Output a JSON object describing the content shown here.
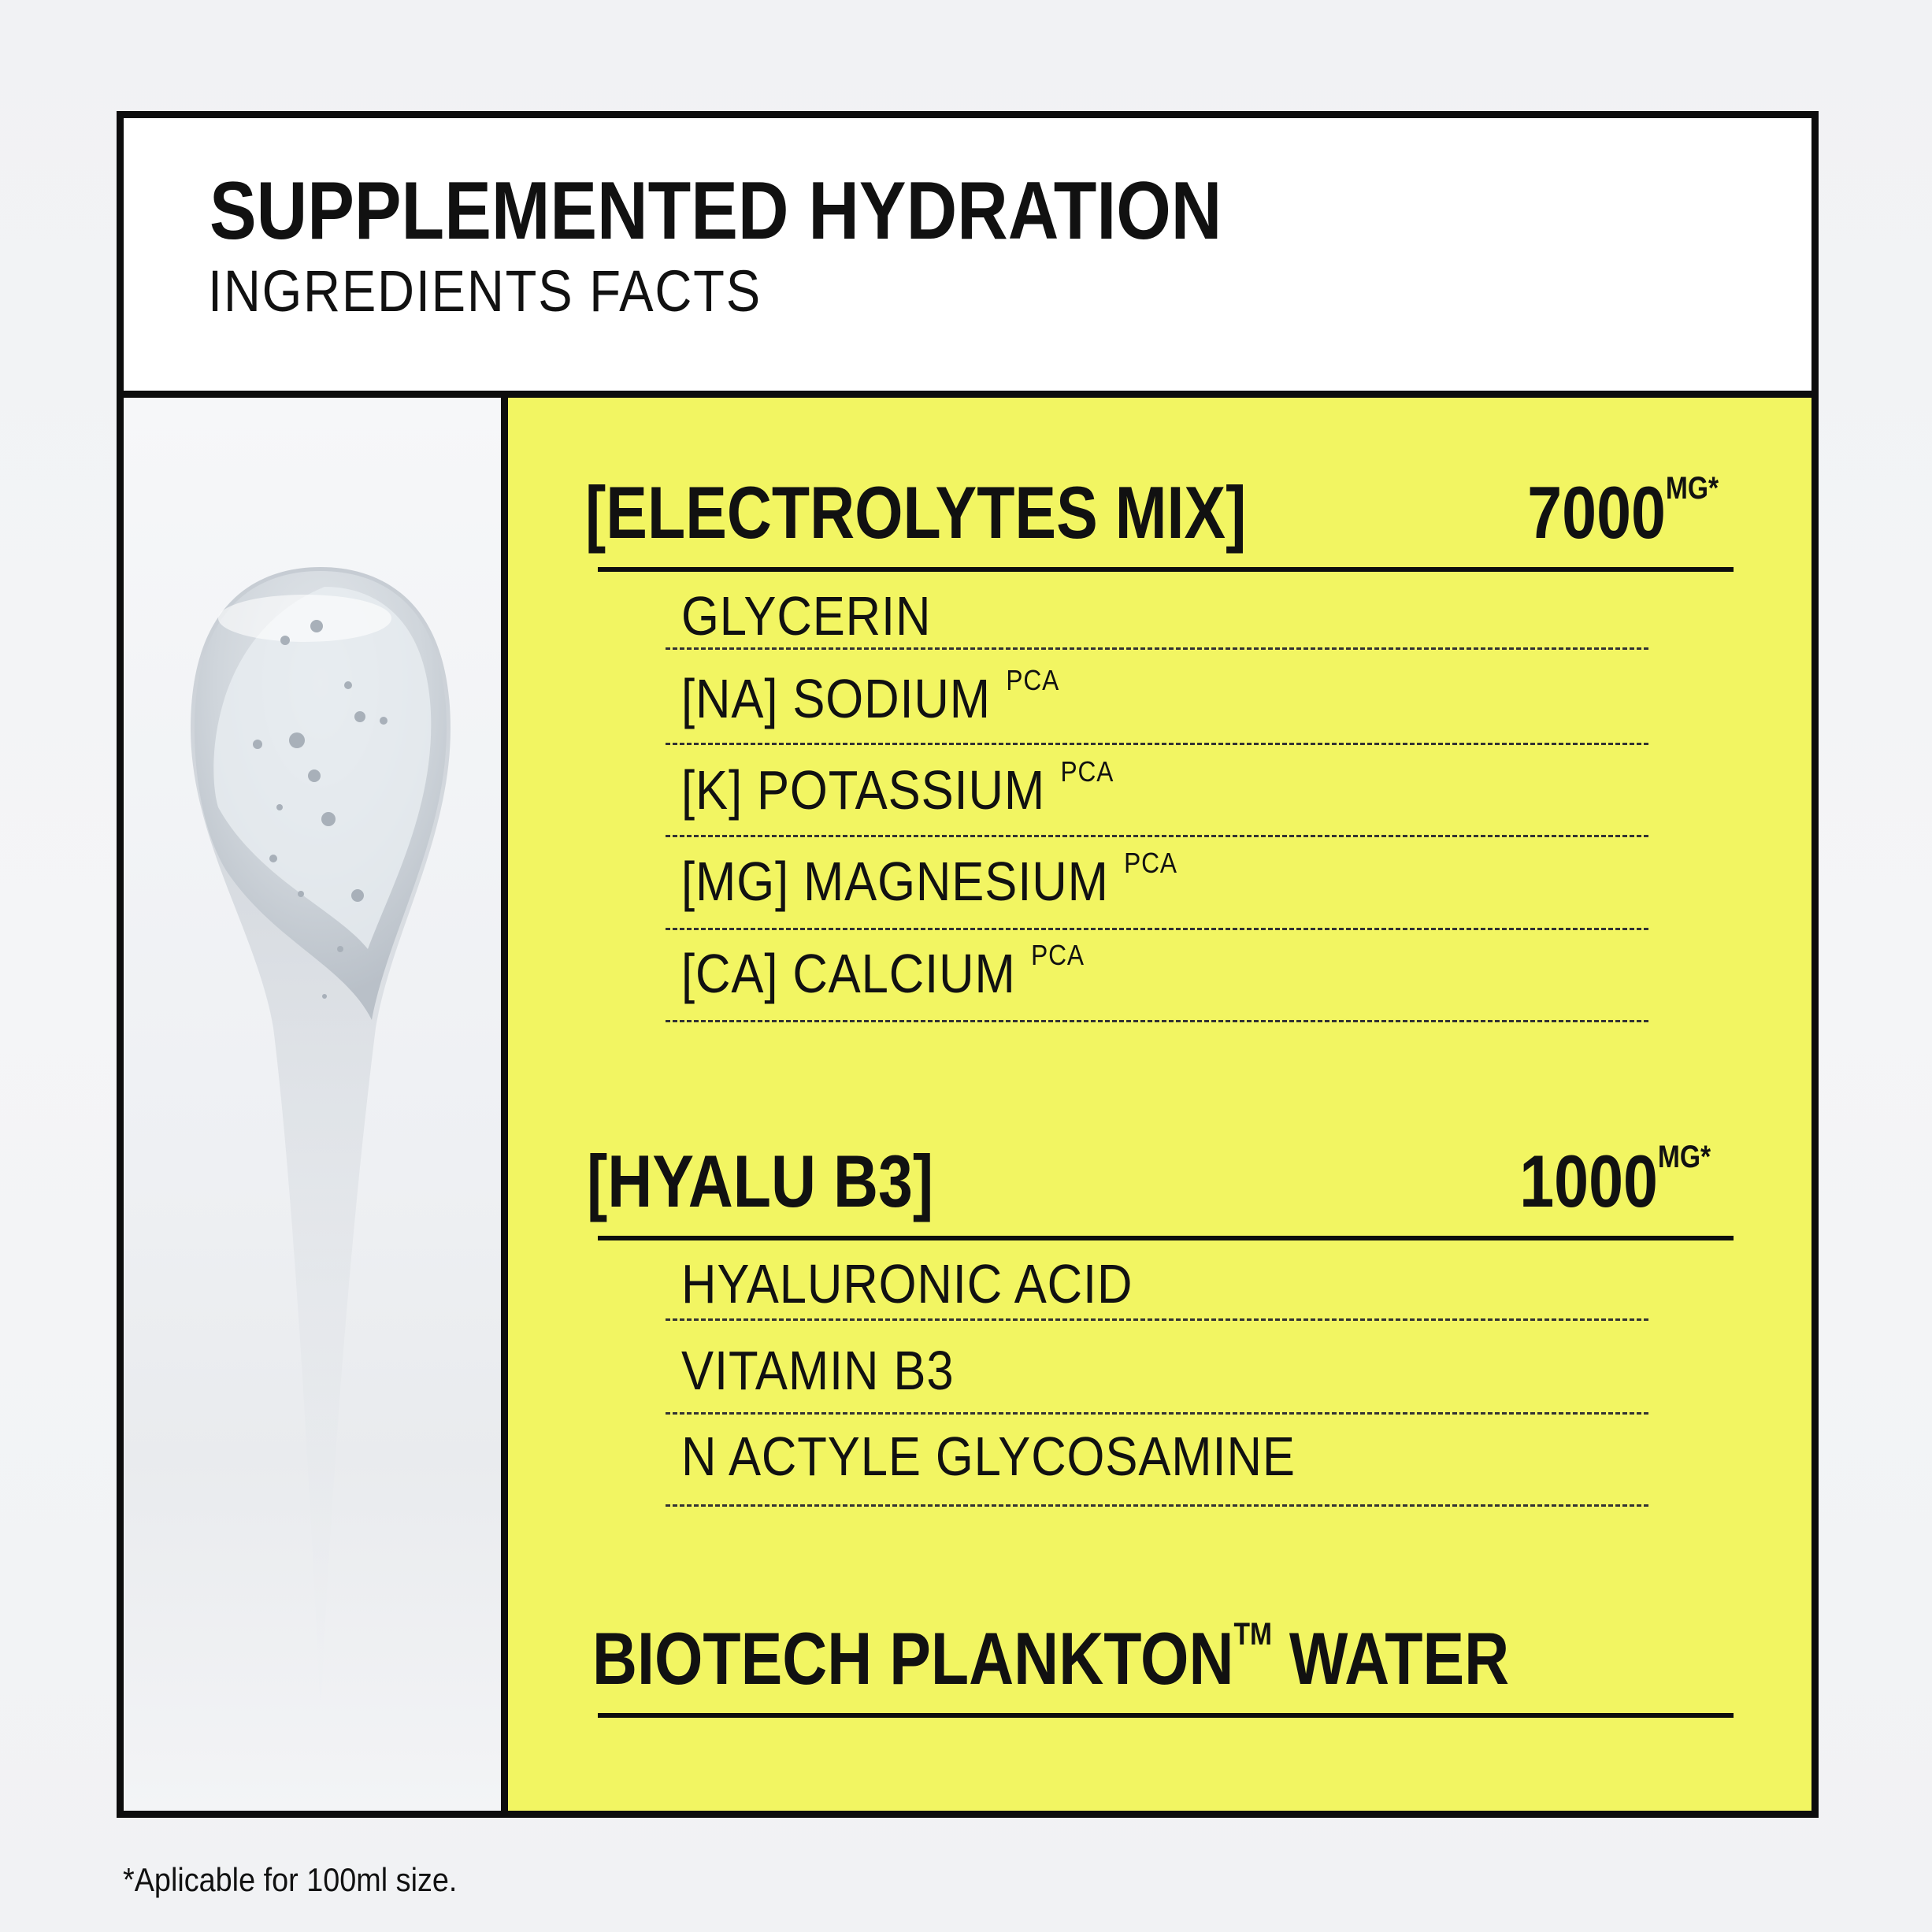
{
  "header": {
    "title": "SUPPLEMENTED HYDRATION",
    "subtitle": "INGREDIENTS FACTS"
  },
  "sections": [
    {
      "heading": "[ELECTROLYTES MIX]",
      "amount": "7000",
      "unit": "MG*",
      "items": [
        {
          "name": "GLYCERIN",
          "suffix": ""
        },
        {
          "name": "[NA] SODIUM",
          "suffix": "PCA"
        },
        {
          "name": "[K] POTASSIUM",
          "suffix": "PCA"
        },
        {
          "name": "[MG] MAGNESIUM",
          "suffix": "PCA"
        },
        {
          "name": "[CA] CALCIUM",
          "suffix": "PCA"
        }
      ]
    },
    {
      "heading": "[HYALU B3]",
      "amount": "1000",
      "unit": "MG*",
      "items": [
        {
          "name": "HYALURONIC ACID",
          "suffix": ""
        },
        {
          "name": "VITAMIN B3",
          "suffix": ""
        },
        {
          "name": "N ACTYLE GLYCOSAMINE",
          "suffix": ""
        }
      ]
    },
    {
      "heading": "BIOTECH PLANKTON",
      "trademark": "TM",
      "heading_tail": " WATER"
    }
  ],
  "footnote": "*Aplicable for 100ml size.",
  "colors": {
    "panel": "#f2f562",
    "border": "#0d0d0d",
    "text": "#111111"
  },
  "image": {
    "icon": "gel-droplet-texture"
  }
}
